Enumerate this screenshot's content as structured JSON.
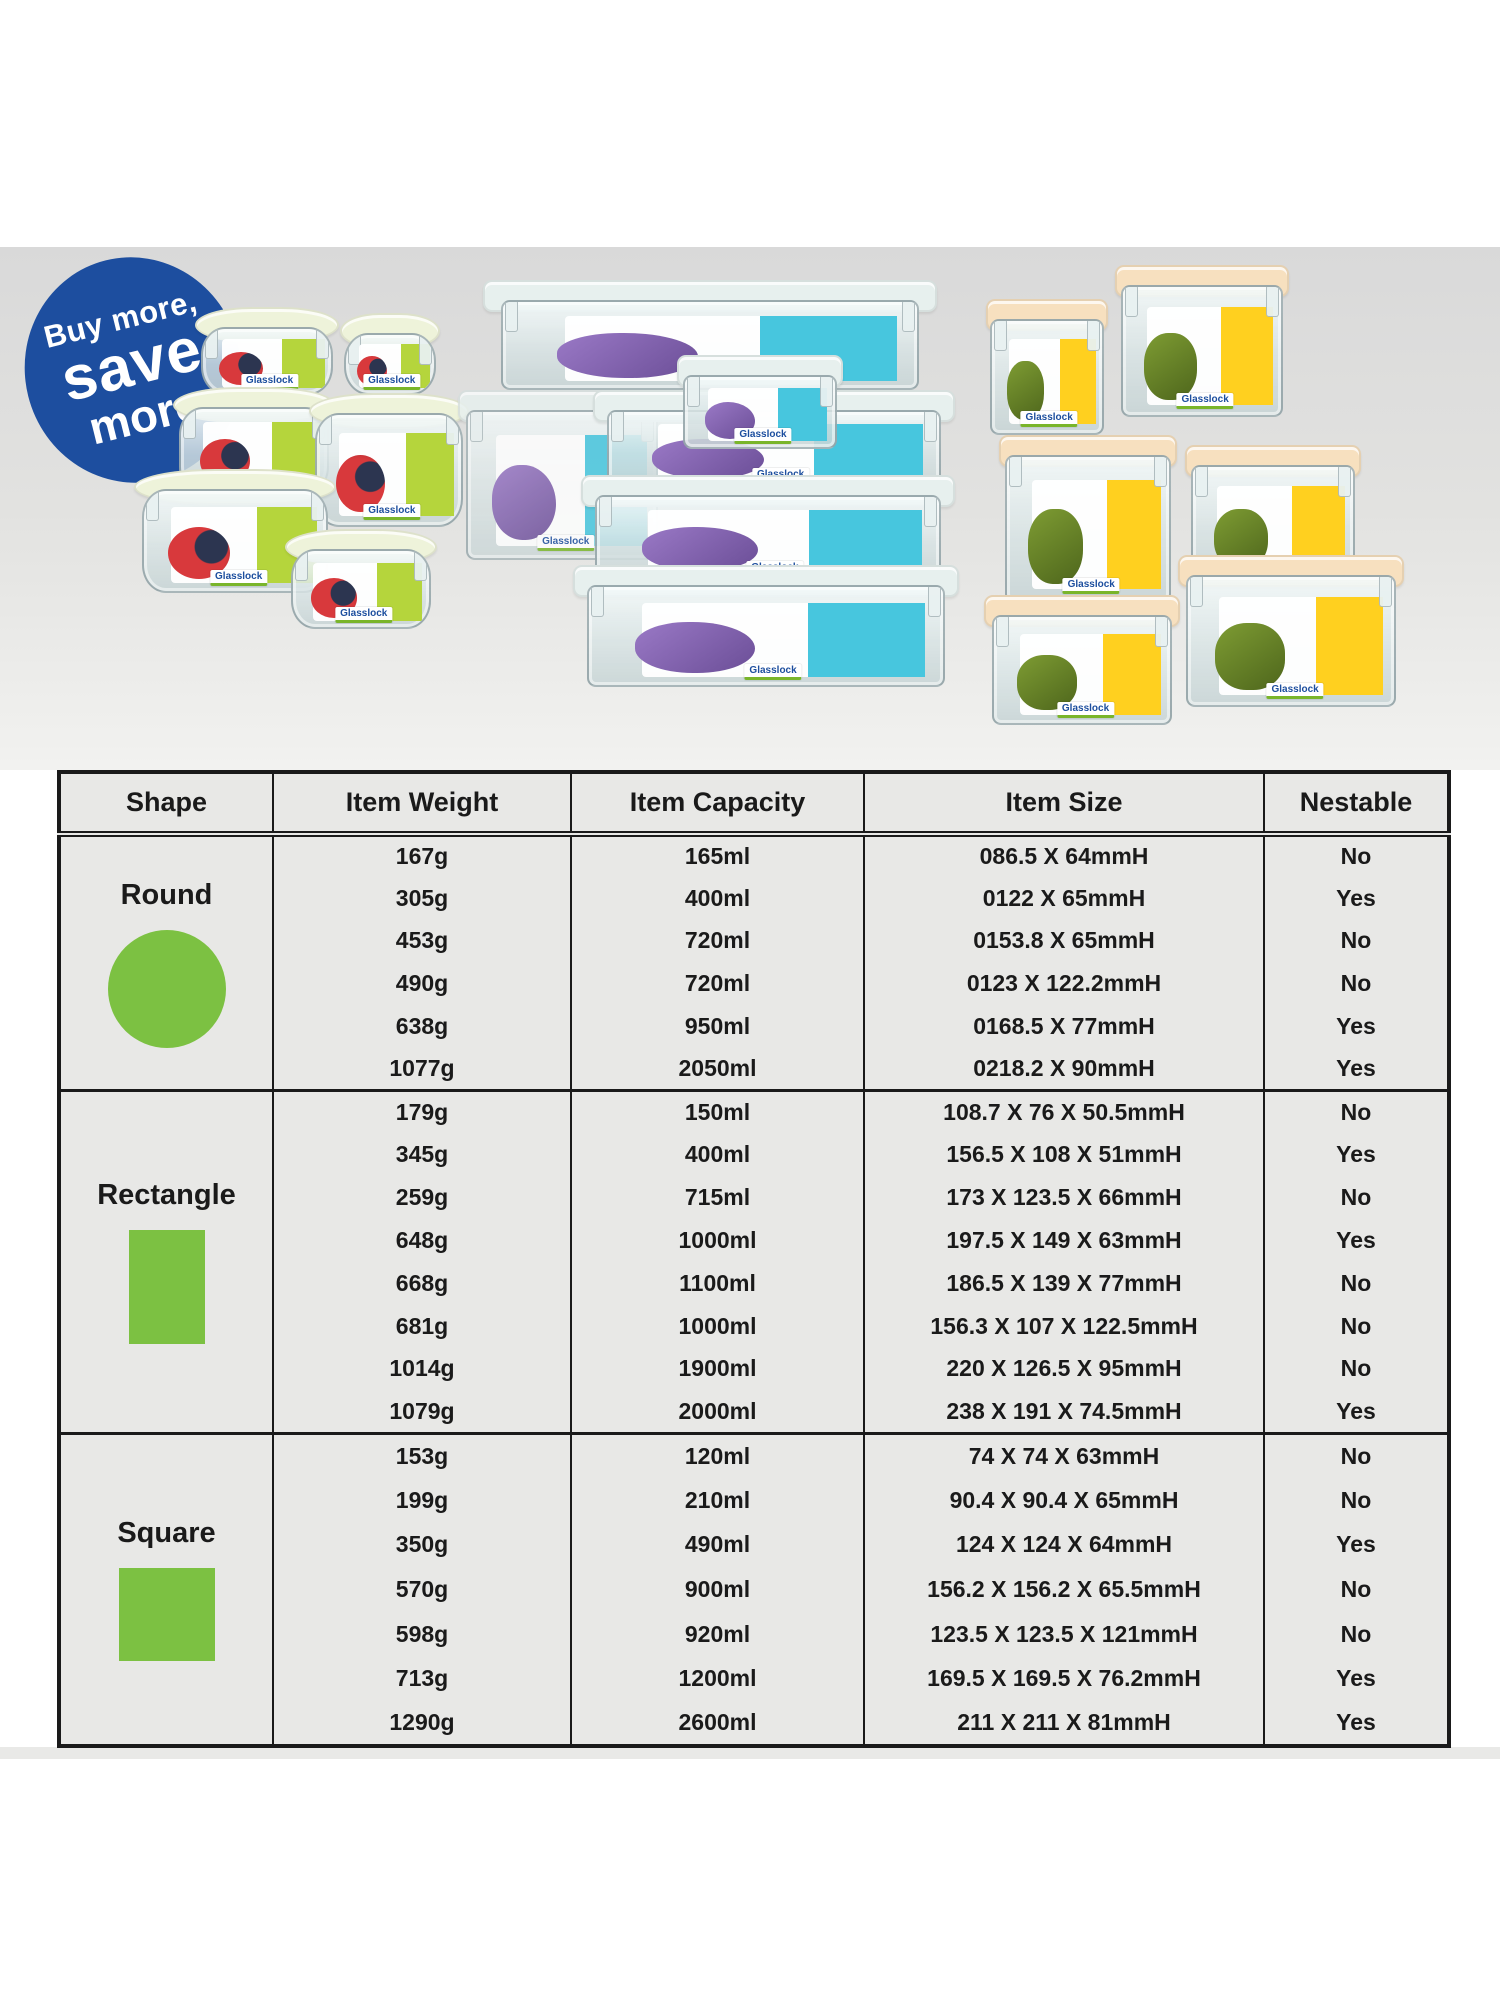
{
  "badge": {
    "line1": "Buy more,",
    "line2": "save",
    "line3": "more"
  },
  "photo": {
    "brand_label": "Glasslock"
  },
  "table": {
    "headers": [
      "Shape",
      "Item Weight",
      "Item Capacity",
      "Item Size",
      "Nestable"
    ],
    "sections": [
      {
        "shape": "Round",
        "icon": "circle",
        "rows": [
          [
            "167g",
            "165ml",
            "086.5 X 64mmH",
            "No"
          ],
          [
            "305g",
            "400ml",
            "0122 X 65mmH",
            "Yes"
          ],
          [
            "453g",
            "720ml",
            "0153.8 X 65mmH",
            "No"
          ],
          [
            "490g",
            "720ml",
            "0123 X 122.2mmH",
            "No"
          ],
          [
            "638g",
            "950ml",
            "0168.5 X 77mmH",
            "Yes"
          ],
          [
            "1077g",
            "2050ml",
            "0218.2 X 90mmH",
            "Yes"
          ]
        ]
      },
      {
        "shape": "Rectangle",
        "icon": "rectangle",
        "rows": [
          [
            "179g",
            "150ml",
            "108.7 X 76 X 50.5mmH",
            "No"
          ],
          [
            "345g",
            "400ml",
            "156.5 X 108 X 51mmH",
            "Yes"
          ],
          [
            "259g",
            "715ml",
            "173 X 123.5 X 66mmH",
            "No"
          ],
          [
            "648g",
            "1000ml",
            "197.5 X 149 X 63mmH",
            "Yes"
          ],
          [
            "668g",
            "1100ml",
            "186.5 X 139 X 77mmH",
            "No"
          ],
          [
            "681g",
            "1000ml",
            "156.3 X 107 X 122.5mmH",
            "No"
          ],
          [
            "1014g",
            "1900ml",
            "220 X 126.5 X 95mmH",
            "No"
          ],
          [
            "1079g",
            "2000ml",
            "238 X 191 X 74.5mmH",
            "Yes"
          ]
        ]
      },
      {
        "shape": "Square",
        "icon": "square",
        "rows": [
          [
            "153g",
            "120ml",
            "74 X 74 X 63mmH",
            "No"
          ],
          [
            "199g",
            "210ml",
            "90.4 X 90.4 X 65mmH",
            "No"
          ],
          [
            "350g",
            "490ml",
            "124 X 124 X 64mmH",
            "Yes"
          ],
          [
            "570g",
            "900ml",
            "156.2 X 156.2 X 65.5mmH",
            "No"
          ],
          [
            "598g",
            "920ml",
            "123.5 X 123.5 X 121mmH",
            "No"
          ],
          [
            "713g",
            "1200ml",
            "169.5 X 169.5 X 76.2mmH",
            "Yes"
          ],
          [
            "1290g",
            "2600ml",
            "211 X 211 X 81mmH",
            "Yes"
          ]
        ]
      }
    ]
  },
  "colors": {
    "badge_blue": "#1d4e9f",
    "shape_green": "#7cc142",
    "lime_label": "#b5d53c",
    "teal_label": "#47c6de",
    "yellow_label": "#ffd01f",
    "lime_lid": "#eef3da",
    "mint_lid": "#e7f0ee",
    "peach_lid": "#f7e0bf",
    "ink": "#1a1a1a",
    "table_bg": "#e8e8e6"
  }
}
